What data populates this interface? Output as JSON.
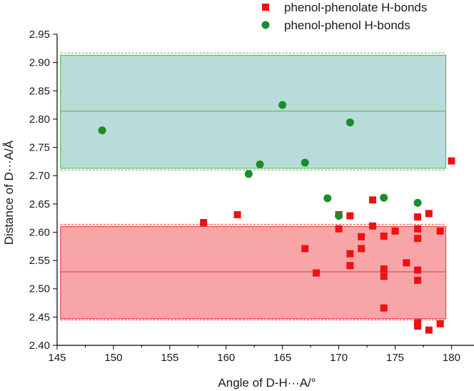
{
  "chart_data": {
    "type": "scatter",
    "title": "",
    "xlabel": "Angle of D-H···A/°",
    "ylabel": "Distance of D···A/Å",
    "xlim": [
      145,
      182
    ],
    "ylim": [
      2.4,
      2.95
    ],
    "xticks": [
      145,
      150,
      155,
      160,
      165,
      170,
      175,
      180
    ],
    "yticks": [
      2.4,
      2.45,
      2.5,
      2.55,
      2.6,
      2.65,
      2.7,
      2.75,
      2.8,
      2.85,
      2.9,
      2.95
    ],
    "xtick_labels": [
      "145",
      "150",
      "155",
      "160",
      "165",
      "170",
      "175",
      "180"
    ],
    "ytick_labels": [
      "2.40",
      "2.45",
      "2.50",
      "2.55",
      "2.60",
      "2.65",
      "2.70",
      "2.75",
      "2.80",
      "2.85",
      "2.90",
      "2.95"
    ],
    "legend_position": "top-right",
    "grid": false,
    "series": [
      {
        "name": "phenol-phenolate H-bonds",
        "marker": "square",
        "color": "#ee1111",
        "points": [
          {
            "x": 158,
            "y": 2.617
          },
          {
            "x": 161,
            "y": 2.631
          },
          {
            "x": 167,
            "y": 2.571
          },
          {
            "x": 168,
            "y": 2.528
          },
          {
            "x": 170,
            "y": 2.631
          },
          {
            "x": 170,
            "y": 2.606
          },
          {
            "x": 171,
            "y": 2.629
          },
          {
            "x": 171,
            "y": 2.562
          },
          {
            "x": 171,
            "y": 2.541
          },
          {
            "x": 172,
            "y": 2.592
          },
          {
            "x": 172,
            "y": 2.571
          },
          {
            "x": 173,
            "y": 2.657
          },
          {
            "x": 173,
            "y": 2.611
          },
          {
            "x": 174,
            "y": 2.593
          },
          {
            "x": 174,
            "y": 2.535
          },
          {
            "x": 174,
            "y": 2.522
          },
          {
            "x": 174,
            "y": 2.466
          },
          {
            "x": 175,
            "y": 2.602
          },
          {
            "x": 176,
            "y": 2.546
          },
          {
            "x": 177,
            "y": 2.627
          },
          {
            "x": 177,
            "y": 2.606
          },
          {
            "x": 177,
            "y": 2.589
          },
          {
            "x": 177,
            "y": 2.533
          },
          {
            "x": 177,
            "y": 2.515
          },
          {
            "x": 177,
            "y": 2.44
          },
          {
            "x": 177,
            "y": 2.434
          },
          {
            "x": 178,
            "y": 2.633
          },
          {
            "x": 178,
            "y": 2.427
          },
          {
            "x": 179,
            "y": 2.602
          },
          {
            "x": 179,
            "y": 2.438
          },
          {
            "x": 180,
            "y": 2.726
          }
        ]
      },
      {
        "name": "phenol-phenol H-bonds",
        "marker": "circle",
        "color": "#1a8c2a",
        "points": [
          {
            "x": 149,
            "y": 2.78
          },
          {
            "x": 162,
            "y": 2.703
          },
          {
            "x": 163,
            "y": 2.72
          },
          {
            "x": 165,
            "y": 2.825
          },
          {
            "x": 167,
            "y": 2.723
          },
          {
            "x": 169,
            "y": 2.66
          },
          {
            "x": 170,
            "y": 2.629
          },
          {
            "x": 171,
            "y": 2.794
          },
          {
            "x": 174,
            "y": 2.661
          },
          {
            "x": 177,
            "y": 2.652
          }
        ]
      }
    ],
    "bands": [
      {
        "name": "phenol-phenol band",
        "fill": "#b7dcda",
        "edge": "#55b04a",
        "x_start": 145.3,
        "x_end": 179.5,
        "y_low": 2.713,
        "y_high": 2.913,
        "dashed_low": 2.71,
        "dashed_high": 2.917,
        "mean": 2.814
      },
      {
        "name": "phenol-phenolate band",
        "fill": "#f8a5a8",
        "edge": "#e03a3a",
        "x_start": 145.3,
        "x_end": 179.5,
        "y_low": 2.447,
        "y_high": 2.61,
        "dashed_low": 2.445,
        "dashed_high": 2.614,
        "mean": 2.53
      }
    ]
  }
}
